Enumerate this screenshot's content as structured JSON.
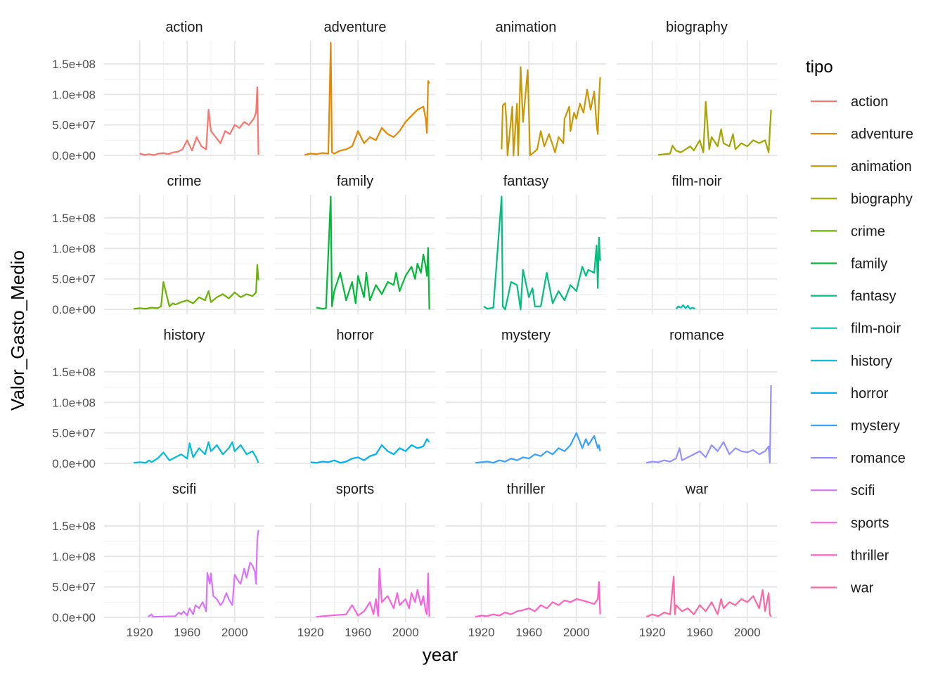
{
  "chart_data": {
    "type": "line",
    "facet": "wrap",
    "xlabel": "year",
    "ylabel": "Valor_Gasto_Medio",
    "legend_title": "tipo",
    "legend_position": "right",
    "grid": true,
    "xlim": [
      1890,
      2025
    ],
    "ylim": [
      -8000000,
      188000000
    ],
    "x_ticks": [
      1920,
      1960,
      2000
    ],
    "x_tick_labels": [
      "1920",
      "1960",
      "2000"
    ],
    "y_ticks": [
      0,
      50000000,
      100000000,
      150000000
    ],
    "y_tick_labels": [
      "0.0e+00",
      "5.0e+07",
      "1.0e+08",
      "1.5e+08"
    ],
    "series": [
      {
        "name": "action",
        "color": "#F8766D",
        "x": [
          1920,
          1924,
          1928,
          1932,
          1936,
          1940,
          1944,
          1948,
          1952,
          1956,
          1960,
          1964,
          1968,
          1972,
          1976,
          1978,
          1980,
          1984,
          1988,
          1992,
          1996,
          2000,
          2004,
          2008,
          2012,
          2016,
          2018,
          2019,
          2020
        ],
        "y": [
          3000000,
          1000000,
          2000000,
          500000,
          3000000,
          4000000,
          2000000,
          5000000,
          6000000,
          10000000,
          25000000,
          8000000,
          30000000,
          15000000,
          10000000,
          75000000,
          40000000,
          30000000,
          20000000,
          40000000,
          35000000,
          50000000,
          45000000,
          55000000,
          50000000,
          60000000,
          70000000,
          112000000,
          1000000
        ]
      },
      {
        "name": "adventure",
        "color": "#E58700",
        "x": [
          1915,
          1920,
          1925,
          1930,
          1935,
          1937,
          1938,
          1940,
          1945,
          1950,
          1955,
          1960,
          1965,
          1970,
          1975,
          1980,
          1985,
          1990,
          1995,
          2000,
          2005,
          2010,
          2015,
          2017,
          2018,
          2019,
          2020
        ],
        "y": [
          1000000,
          3000000,
          2000000,
          4000000,
          3000000,
          185000000,
          5000000,
          3000000,
          8000000,
          10000000,
          15000000,
          40000000,
          20000000,
          30000000,
          25000000,
          45000000,
          35000000,
          30000000,
          40000000,
          55000000,
          65000000,
          75000000,
          80000000,
          60000000,
          37000000,
          122000000,
          118000000
        ]
      },
      {
        "name": "animation",
        "color": "#C99800",
        "x": [
          1937,
          1938,
          1940,
          1941,
          1942,
          1946,
          1947,
          1950,
          1951,
          1953,
          1955,
          1959,
          1961,
          1967,
          1970,
          1973,
          1977,
          1982,
          1985,
          1989,
          1990,
          1994,
          1995,
          1998,
          2000,
          2003,
          2006,
          2009,
          2012,
          2015,
          2017,
          2018,
          2019,
          2020
        ],
        "y": [
          10000000,
          82000000,
          86000000,
          60000000,
          0,
          80000000,
          0,
          85000000,
          0,
          145000000,
          55000000,
          140000000,
          0,
          10000000,
          40000000,
          15000000,
          35000000,
          5000000,
          30000000,
          20000000,
          60000000,
          80000000,
          40000000,
          70000000,
          60000000,
          85000000,
          70000000,
          108000000,
          75000000,
          105000000,
          50000000,
          35000000,
          90000000,
          128000000
        ]
      },
      {
        "name": "biography",
        "color": "#A3A500",
        "x": [
          1925,
          1935,
          1937,
          1940,
          1944,
          1948,
          1952,
          1955,
          1960,
          1963,
          1965,
          1968,
          1970,
          1975,
          1978,
          1980,
          1985,
          1988,
          1990,
          1995,
          2000,
          2005,
          2010,
          2015,
          2018,
          2020
        ],
        "y": [
          1000000,
          3000000,
          16000000,
          8000000,
          5000000,
          10000000,
          15000000,
          8000000,
          25000000,
          5000000,
          88000000,
          10000000,
          30000000,
          15000000,
          43000000,
          20000000,
          15000000,
          35000000,
          10000000,
          20000000,
          15000000,
          25000000,
          20000000,
          25000000,
          5000000,
          75000000
        ]
      },
      {
        "name": "crime",
        "color": "#6BB100",
        "x": [
          1915,
          1920,
          1925,
          1930,
          1935,
          1938,
          1940,
          1945,
          1948,
          1950,
          1955,
          1960,
          1965,
          1970,
          1975,
          1978,
          1980,
          1985,
          1990,
          1995,
          2000,
          2005,
          2010,
          2015,
          2018,
          2019,
          2020
        ],
        "y": [
          1000000,
          2000000,
          1000000,
          3000000,
          2000000,
          5000000,
          45000000,
          5000000,
          10000000,
          8000000,
          12000000,
          15000000,
          10000000,
          20000000,
          15000000,
          30000000,
          12000000,
          20000000,
          25000000,
          18000000,
          28000000,
          20000000,
          25000000,
          22000000,
          28000000,
          73000000,
          48000000
        ]
      },
      {
        "name": "family",
        "color": "#00BA38",
        "x": [
          1925,
          1930,
          1933,
          1937,
          1938,
          1940,
          1945,
          1950,
          1955,
          1958,
          1960,
          1965,
          1967,
          1970,
          1975,
          1980,
          1985,
          1990,
          1992,
          1995,
          2000,
          2005,
          2008,
          2010,
          2013,
          2015,
          2017,
          2018,
          2019,
          2020
        ],
        "y": [
          3000000,
          1000000,
          2000000,
          185000000,
          5000000,
          30000000,
          60000000,
          15000000,
          45000000,
          10000000,
          55000000,
          20000000,
          60000000,
          15000000,
          40000000,
          25000000,
          45000000,
          40000000,
          60000000,
          30000000,
          55000000,
          70000000,
          50000000,
          75000000,
          60000000,
          90000000,
          70000000,
          55000000,
          101000000,
          0
        ]
      },
      {
        "name": "fantasy",
        "color": "#00BF7D",
        "x": [
          1922,
          1925,
          1930,
          1937,
          1938,
          1940,
          1945,
          1950,
          1953,
          1955,
          1960,
          1963,
          1965,
          1970,
          1975,
          1980,
          1985,
          1990,
          1995,
          2000,
          2005,
          2008,
          2010,
          2015,
          2017,
          2018,
          2019,
          2020
        ],
        "y": [
          5000000,
          1000000,
          3000000,
          185000000,
          5000000,
          0,
          45000000,
          40000000,
          0,
          65000000,
          20000000,
          35000000,
          5000000,
          5000000,
          60000000,
          10000000,
          30000000,
          15000000,
          40000000,
          30000000,
          70000000,
          55000000,
          65000000,
          60000000,
          105000000,
          35000000,
          118000000,
          80000000
        ]
      },
      {
        "name": "film-noir",
        "color": "#00C0AF",
        "x": [
          1940,
          1942,
          1944,
          1946,
          1948,
          1950,
          1952,
          1954,
          1956
        ],
        "y": [
          1000000,
          5000000,
          3000000,
          7000000,
          2000000,
          6000000,
          1000000,
          3000000,
          1000000
        ]
      },
      {
        "name": "history",
        "color": "#00BCD8",
        "x": [
          1915,
          1920,
          1925,
          1928,
          1930,
          1935,
          1940,
          1945,
          1950,
          1955,
          1960,
          1962,
          1965,
          1970,
          1975,
          1978,
          1980,
          1985,
          1990,
          1995,
          1998,
          2000,
          2005,
          2010,
          2015,
          2018,
          2020
        ],
        "y": [
          1000000,
          2000000,
          1000000,
          5000000,
          2000000,
          8000000,
          18000000,
          5000000,
          10000000,
          15000000,
          8000000,
          33000000,
          10000000,
          25000000,
          15000000,
          35000000,
          20000000,
          30000000,
          15000000,
          25000000,
          35000000,
          20000000,
          30000000,
          15000000,
          20000000,
          10000000,
          1000000
        ]
      },
      {
        "name": "horror",
        "color": "#00B0F6",
        "x": [
          1920,
          1925,
          1930,
          1935,
          1940,
          1945,
          1950,
          1955,
          1960,
          1965,
          1970,
          1975,
          1980,
          1985,
          1990,
          1995,
          2000,
          2005,
          2010,
          2015,
          2018,
          2020
        ],
        "y": [
          2000000,
          1000000,
          3000000,
          2000000,
          5000000,
          1000000,
          3000000,
          8000000,
          10000000,
          5000000,
          12000000,
          15000000,
          30000000,
          20000000,
          15000000,
          25000000,
          20000000,
          30000000,
          25000000,
          28000000,
          40000000,
          35000000
        ]
      },
      {
        "name": "mystery",
        "color": "#35A2FF",
        "x": [
          1915,
          1920,
          1925,
          1930,
          1935,
          1940,
          1945,
          1950,
          1955,
          1960,
          1965,
          1970,
          1975,
          1980,
          1985,
          1990,
          1995,
          2000,
          2005,
          2008,
          2010,
          2015,
          2018,
          2019,
          2020
        ],
        "y": [
          1000000,
          2000000,
          3000000,
          1000000,
          5000000,
          3000000,
          8000000,
          5000000,
          10000000,
          8000000,
          15000000,
          12000000,
          20000000,
          15000000,
          25000000,
          20000000,
          30000000,
          50000000,
          25000000,
          40000000,
          30000000,
          45000000,
          25000000,
          30000000,
          20000000
        ]
      },
      {
        "name": "romance",
        "color": "#9590FF",
        "x": [
          1915,
          1920,
          1925,
          1930,
          1935,
          1940,
          1943,
          1945,
          1950,
          1955,
          1960,
          1965,
          1970,
          1975,
          1980,
          1985,
          1990,
          1995,
          2000,
          2005,
          2010,
          2015,
          2018,
          2019,
          2020
        ],
        "y": [
          1000000,
          3000000,
          2000000,
          5000000,
          3000000,
          8000000,
          25000000,
          5000000,
          10000000,
          15000000,
          20000000,
          10000000,
          30000000,
          20000000,
          35000000,
          15000000,
          25000000,
          20000000,
          18000000,
          22000000,
          15000000,
          20000000,
          28000000,
          1000000,
          128000000
        ]
      },
      {
        "name": "scifi",
        "color": "#D973FC",
        "x": [
          1927,
          1930,
          1931,
          1950,
          1953,
          1955,
          1957,
          1960,
          1962,
          1965,
          1967,
          1970,
          1973,
          1976,
          1977,
          1979,
          1980,
          1982,
          1985,
          1988,
          1990,
          1993,
          1995,
          1998,
          2000,
          2003,
          2005,
          2008,
          2010,
          2013,
          2015,
          2017,
          2018,
          2019,
          2020
        ],
        "y": [
          1000000,
          5000000,
          1000000,
          2000000,
          8000000,
          5000000,
          10000000,
          3000000,
          15000000,
          5000000,
          20000000,
          15000000,
          25000000,
          10000000,
          73000000,
          55000000,
          72000000,
          35000000,
          30000000,
          20000000,
          25000000,
          40000000,
          30000000,
          20000000,
          70000000,
          60000000,
          55000000,
          80000000,
          65000000,
          90000000,
          85000000,
          75000000,
          55000000,
          128000000,
          143000000
        ]
      },
      {
        "name": "sports",
        "color": "#F763E0",
        "x": [
          1925,
          1930,
          1950,
          1955,
          1960,
          1965,
          1970,
          1973,
          1975,
          1977,
          1978,
          1980,
          1985,
          1990,
          1993,
          1995,
          2000,
          2003,
          2005,
          2008,
          2010,
          2013,
          2015,
          2017,
          2018,
          2019,
          2020
        ],
        "y": [
          1000000,
          2000000,
          5000000,
          20000000,
          3000000,
          10000000,
          25000000,
          5000000,
          30000000,
          2000000,
          80000000,
          25000000,
          35000000,
          15000000,
          40000000,
          20000000,
          30000000,
          15000000,
          40000000,
          25000000,
          45000000,
          20000000,
          35000000,
          10000000,
          5000000,
          72000000,
          1000000
        ]
      },
      {
        "name": "thriller",
        "color": "#FF61C3",
        "x": [
          1915,
          1920,
          1925,
          1930,
          1935,
          1940,
          1945,
          1950,
          1955,
          1960,
          1965,
          1970,
          1975,
          1980,
          1985,
          1990,
          1995,
          2000,
          2005,
          2010,
          2015,
          2018,
          2019,
          2020
        ],
        "y": [
          1000000,
          3000000,
          2000000,
          5000000,
          3000000,
          8000000,
          5000000,
          10000000,
          12000000,
          15000000,
          10000000,
          20000000,
          15000000,
          25000000,
          20000000,
          28000000,
          25000000,
          30000000,
          28000000,
          25000000,
          22000000,
          30000000,
          58000000,
          5000000
        ]
      },
      {
        "name": "war",
        "color": "#FF67A4",
        "x": [
          1915,
          1920,
          1925,
          1930,
          1935,
          1938,
          1939,
          1940,
          1945,
          1950,
          1955,
          1960,
          1965,
          1970,
          1975,
          1978,
          1980,
          1985,
          1990,
          1995,
          2000,
          2005,
          2010,
          2013,
          2015,
          2017,
          2018,
          2019,
          2020
        ],
        "y": [
          1000000,
          5000000,
          2000000,
          8000000,
          5000000,
          67000000,
          5000000,
          20000000,
          10000000,
          15000000,
          5000000,
          20000000,
          10000000,
          25000000,
          5000000,
          30000000,
          15000000,
          25000000,
          20000000,
          30000000,
          25000000,
          35000000,
          15000000,
          45000000,
          10000000,
          30000000,
          40000000,
          5000000,
          1000000
        ]
      }
    ]
  }
}
